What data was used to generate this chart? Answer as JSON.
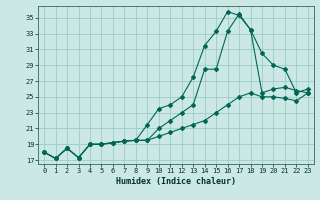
{
  "xlabel": "Humidex (Indice chaleur)",
  "background_color": "#cce8e4",
  "grid_color": "#99cccc",
  "line_color": "#006655",
  "xlim": [
    -0.5,
    23.5
  ],
  "ylim": [
    16.5,
    36.5
  ],
  "xticks": [
    0,
    1,
    2,
    3,
    4,
    5,
    6,
    7,
    8,
    9,
    10,
    11,
    12,
    13,
    14,
    15,
    16,
    17,
    18,
    19,
    20,
    21,
    22,
    23
  ],
  "yticks": [
    17,
    19,
    21,
    23,
    25,
    27,
    29,
    31,
    33,
    35
  ],
  "line1_x": [
    0,
    1,
    2,
    3,
    4,
    5,
    6,
    7,
    8,
    9,
    10,
    11,
    12,
    13,
    14,
    15,
    16,
    17,
    18,
    19,
    20,
    21,
    22,
    23
  ],
  "line1_y": [
    18.0,
    17.2,
    18.5,
    17.3,
    19.0,
    19.0,
    19.2,
    19.4,
    19.5,
    21.5,
    23.5,
    24.0,
    25.0,
    27.5,
    31.5,
    33.3,
    35.8,
    35.3,
    33.5,
    30.5,
    29.0,
    28.5,
    25.5,
    26.0
  ],
  "line2_x": [
    0,
    1,
    2,
    3,
    4,
    5,
    6,
    7,
    8,
    9,
    10,
    11,
    12,
    13,
    14,
    15,
    16,
    17,
    18,
    19,
    20,
    21,
    22,
    23
  ],
  "line2_y": [
    18.0,
    17.2,
    18.5,
    17.3,
    19.0,
    19.0,
    19.2,
    19.4,
    19.5,
    19.5,
    21.0,
    22.0,
    23.0,
    24.0,
    28.5,
    28.5,
    33.3,
    35.5,
    33.5,
    25.5,
    26.0,
    26.2,
    25.8,
    25.5
  ],
  "line3_x": [
    0,
    1,
    2,
    3,
    4,
    5,
    6,
    7,
    8,
    9,
    10,
    11,
    12,
    13,
    14,
    15,
    16,
    17,
    18,
    19,
    20,
    21,
    22,
    23
  ],
  "line3_y": [
    18.0,
    17.2,
    18.5,
    17.3,
    19.0,
    19.0,
    19.2,
    19.4,
    19.5,
    19.5,
    20.0,
    20.5,
    21.0,
    21.5,
    22.0,
    23.0,
    24.0,
    25.0,
    25.5,
    25.0,
    25.0,
    24.8,
    24.5,
    25.5
  ]
}
